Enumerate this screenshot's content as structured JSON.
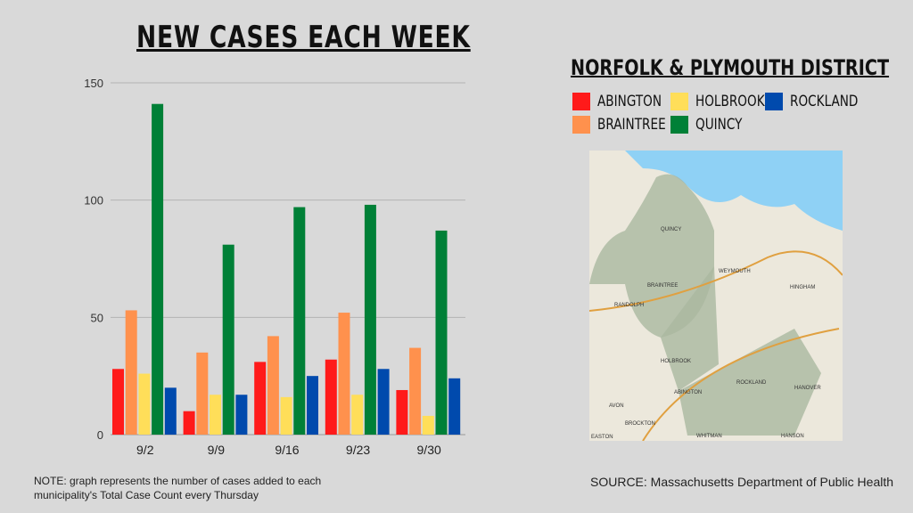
{
  "title": "NEW CASES EACH WEEK",
  "legend_title": "NORFOLK & PLYMOUTH DISTRICT",
  "note": "NOTE: graph represents the number of cases added to each municipality's Total Case Count every Thursday",
  "source": "SOURCE: Massachusetts Department of Public Health",
  "map_labels": [
    "QUINCY",
    "WEYMOUTH",
    "BRAINTREE",
    "RANDOLPH",
    "HINGHAM",
    "HOLBROOK",
    "AVON",
    "ABINGTON",
    "ROCKLAND",
    "HANOVER",
    "BROCKTON",
    "WHITMAN",
    "HANSON",
    "EASTON"
  ],
  "chart_data": {
    "type": "bar",
    "title": "NEW CASES EACH WEEK",
    "categories": [
      "9/2",
      "9/9",
      "9/16",
      "9/23",
      "9/30"
    ],
    "ylim": [
      0,
      150
    ],
    "yticks": [
      0,
      50,
      100,
      150
    ],
    "grid": true,
    "legend_placement": "right",
    "series": [
      {
        "name": "ABINGTON",
        "color": "#ff1a1a",
        "values": [
          28,
          10,
          31,
          32,
          19
        ]
      },
      {
        "name": "BRAINTREE",
        "color": "#ff914d",
        "values": [
          53,
          35,
          42,
          52,
          37
        ]
      },
      {
        "name": "HOLBROOK",
        "color": "#ffde59",
        "values": [
          26,
          17,
          16,
          17,
          8
        ]
      },
      {
        "name": "QUINCY",
        "color": "#008037",
        "values": [
          141,
          81,
          97,
          98,
          87
        ]
      },
      {
        "name": "ROCKLAND",
        "color": "#004aad",
        "values": [
          20,
          17,
          25,
          28,
          24
        ]
      }
    ]
  }
}
